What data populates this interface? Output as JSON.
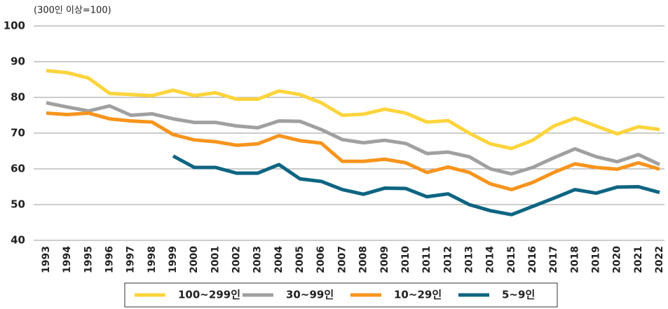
{
  "chart_data": {
    "type": "line",
    "subtitle": "(300인 이상=100)",
    "categories": [
      "1993",
      "1994",
      "1995",
      "1996",
      "1997",
      "1998",
      "1999",
      "2000",
      "2001",
      "2002",
      "2003",
      "2004",
      "2005",
      "2006",
      "2007",
      "2008",
      "2009",
      "2010",
      "2011",
      "2012",
      "2013",
      "2014",
      "2015",
      "2016",
      "2017",
      "2018",
      "2019",
      "2020",
      "2021",
      "2022"
    ],
    "series": [
      {
        "name": "100~299인",
        "color": "#FDD43B",
        "values": [
          87.5,
          86.9,
          85.4,
          81.1,
          80.8,
          80.5,
          82.0,
          80.5,
          81.3,
          79.5,
          79.5,
          81.8,
          80.8,
          78.5,
          75.0,
          75.3,
          76.7,
          75.6,
          73.1,
          73.5,
          70.0,
          67.0,
          65.7,
          68.0,
          72.0,
          74.2,
          72.0,
          69.8,
          71.8,
          71.0
        ]
      },
      {
        "name": "30~99인",
        "color": "#A0A0A0",
        "values": [
          78.5,
          77.3,
          76.2,
          77.6,
          75.0,
          75.4,
          74.0,
          73.0,
          73.0,
          72.0,
          71.5,
          73.4,
          73.3,
          71.0,
          68.2,
          67.3,
          68.0,
          67.1,
          64.3,
          64.7,
          63.4,
          60.0,
          58.6,
          60.4,
          63.1,
          65.6,
          63.4,
          62.0,
          64.0,
          61.2
        ]
      },
      {
        "name": "10~29인",
        "color": "#F7941D",
        "values": [
          75.6,
          75.2,
          75.6,
          74.0,
          73.4,
          73.1,
          69.6,
          68.1,
          67.6,
          66.6,
          67.0,
          69.3,
          67.9,
          67.2,
          62.1,
          62.1,
          62.7,
          61.7,
          59.0,
          60.5,
          59.0,
          55.8,
          54.2,
          56.2,
          59.0,
          61.4,
          60.4,
          59.9,
          61.7,
          59.9
        ]
      },
      {
        "name": "5~9인",
        "color": "#0E6582",
        "values": [
          null,
          null,
          null,
          null,
          null,
          null,
          63.6,
          60.4,
          60.4,
          58.8,
          58.8,
          61.2,
          57.2,
          56.5,
          54.2,
          52.9,
          54.6,
          54.5,
          52.2,
          53.0,
          50.0,
          48.3,
          47.2,
          49.5,
          51.8,
          54.2,
          53.2,
          54.9,
          55.0,
          53.4
        ]
      }
    ],
    "ylim": [
      40,
      100
    ],
    "yticks": [
      40,
      50,
      60,
      70,
      80,
      90,
      100
    ],
    "grid": true,
    "legend": "bottom"
  }
}
